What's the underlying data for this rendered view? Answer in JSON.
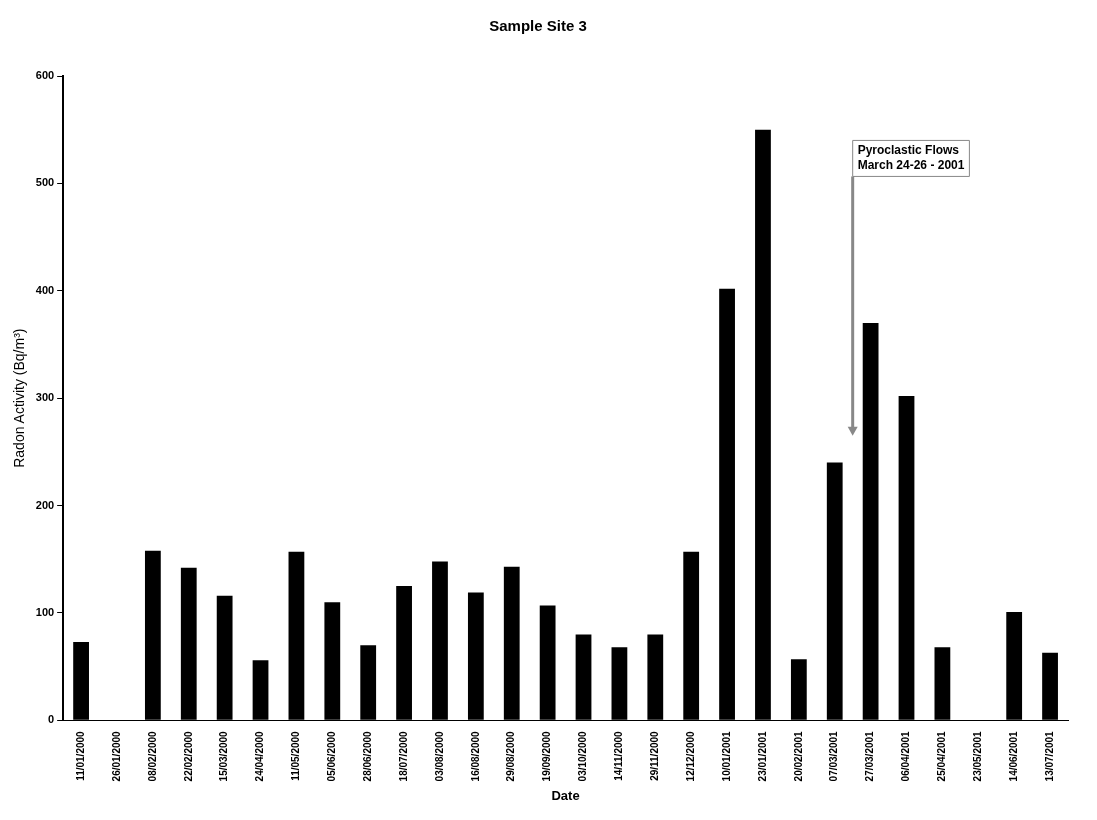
{
  "chart_data": {
    "type": "bar",
    "title": "Sample Site 3",
    "xlabel": "Date",
    "ylabel": "Radon Activity (Bq/m³)",
    "categories": [
      "11/01/2000",
      "26/01/2000",
      "08/02/2000",
      "22/02/2000",
      "15/03/2000",
      "24/04/2000",
      "11/05/2000",
      "05/06/2000",
      "28/06/2000",
      "18/07/2000",
      "03/08/2000",
      "16/08/2000",
      "29/08/2000",
      "19/09/2000",
      "03/10/2000",
      "14/11/2000",
      "29/11/2000",
      "12/12/2000",
      "10/01/2001",
      "23/01/2001",
      "20/02/2001",
      "07/03/2001",
      "27/03/2001",
      "06/04/2001",
      "25/04/2001",
      "23/05/2001",
      "14/06/2001",
      "13/07/2001"
    ],
    "values": [
      73,
      0,
      158,
      142,
      116,
      56,
      157,
      110,
      70,
      125,
      148,
      119,
      143,
      107,
      80,
      68,
      80,
      157,
      402,
      550,
      57,
      240,
      370,
      302,
      68,
      0,
      101,
      63
    ],
    "color": "#000000",
    "ylim": [
      0,
      600
    ],
    "yticks": [
      0,
      100,
      200,
      300,
      400,
      500,
      600
    ],
    "grid": false,
    "annotations": [
      "Pyroclastic Flows\nMarch 24-26 - 2001"
    ]
  }
}
